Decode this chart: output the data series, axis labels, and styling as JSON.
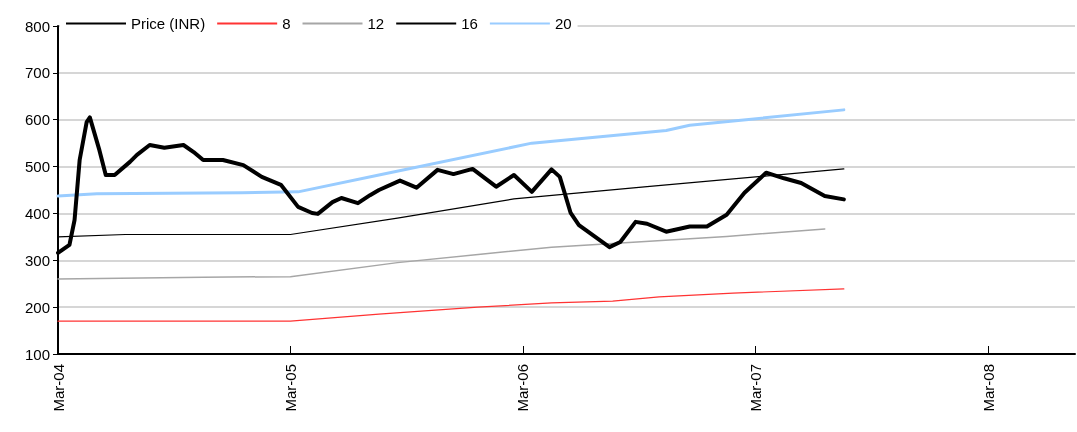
{
  "chart_data": {
    "type": "line",
    "legend": "top left",
    "grid": "y",
    "marker": "none",
    "line_style": "solid",
    "ylim": [
      100,
      800
    ],
    "yticks": [
      100,
      200,
      300,
      400,
      500,
      600,
      700,
      800
    ],
    "xlim": [
      "2004-03",
      "2008-07-15"
    ],
    "xticks": [
      {
        "value": "2004-03",
        "label": "Mar-04"
      },
      {
        "value": "2005-03",
        "label": "Mar-05"
      },
      {
        "value": "2006-03",
        "label": "Mar-06"
      },
      {
        "value": "2007-03",
        "label": "Mar-07"
      },
      {
        "value": "2008-03",
        "label": "Mar-08"
      }
    ],
    "series": [
      {
        "name": "Price (INR)",
        "color": "#000000",
        "x": [
          "2004-03-01",
          "2004-03-19",
          "2004-03-27",
          "2004-04-04",
          "2004-04-15",
          "2004-04-20",
          "2004-05-05",
          "2004-05-15",
          "2004-05-29",
          "2004-06-22",
          "2004-07-03",
          "2004-07-23",
          "2004-08-15",
          "2004-09-14",
          "2004-09-30",
          "2004-10-15",
          "2004-11-15",
          "2004-12-17",
          "2005-01-15",
          "2005-02-14",
          "2005-03-13",
          "2005-04-04",
          "2005-04-13",
          "2005-05-06",
          "2005-05-20",
          "2005-06-15",
          "2005-07-04",
          "2005-07-18",
          "2005-08-20",
          "2005-09-15",
          "2005-10-18",
          "2005-11-12",
          "2005-12-12",
          "2006-01-18",
          "2006-02-15",
          "2006-03-15",
          "2006-04-15",
          "2006-04-28",
          "2006-05-15",
          "2006-05-28",
          "2006-07-15",
          "2006-08-01",
          "2006-08-25",
          "2006-09-12",
          "2006-10-12",
          "2006-11-18",
          "2006-12-15",
          "2007-01-15",
          "2007-02-12",
          "2007-03-18",
          "2007-04-15",
          "2007-05-12",
          "2007-06-18",
          "2007-07-18"
        ],
        "values": [
          316,
          333,
          386,
          514,
          595,
          605,
          535,
          482,
          482,
          510,
          525,
          546,
          540,
          546,
          531,
          514,
          514,
          503,
          478,
          461,
          414,
          401,
          399,
          424,
          433,
          422,
          439,
          450,
          470,
          455,
          493,
          484,
          495,
          457,
          482,
          446,
          494,
          478,
          401,
          375,
          328,
          339,
          382,
          378,
          361,
          372,
          372,
          397,
          444,
          487,
          475,
          465,
          437,
          430
        ]
      },
      {
        "name": "8",
        "color": "#ff3333",
        "x": [
          "2004-03-01",
          "2005-03-01",
          "2005-07-18",
          "2005-12-20",
          "2006-04-15",
          "2006-07-20",
          "2006-10-01",
          "2007-01-25",
          "2007-07-18"
        ],
        "values": [
          170,
          170,
          185,
          200,
          209,
          213,
          222,
          230,
          239
        ]
      },
      {
        "name": "12",
        "color": "#a6a6a6",
        "x": [
          "2004-03-01",
          "2004-10-15",
          "2005-03-01",
          "2005-08-16",
          "2006-04-15",
          "2006-07-20",
          "2007-01-15",
          "2007-06-18"
        ],
        "values": [
          260,
          264,
          265,
          295,
          328,
          336,
          351,
          367
        ]
      },
      {
        "name": "16",
        "color": "#000000",
        "x": [
          "2004-03-01",
          "2004-06-15",
          "2005-03-01",
          "2005-08-16",
          "2006-02-15",
          "2006-09-12",
          "2007-07-18"
        ],
        "values": [
          350,
          355,
          355,
          390,
          431,
          457,
          495
        ]
      },
      {
        "name": "20",
        "color": "#99ccff",
        "x": [
          "2004-03-01",
          "2004-05-01",
          "2004-12-15",
          "2005-03-13",
          "2005-07-18",
          "2006-03-15",
          "2006-10-12",
          "2006-11-18",
          "2007-07-18"
        ],
        "values": [
          437,
          442,
          444,
          446,
          482,
          550,
          577,
          588,
          621
        ]
      }
    ]
  }
}
